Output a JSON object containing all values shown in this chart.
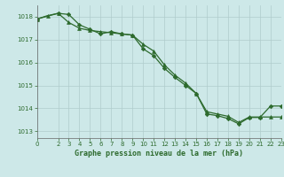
{
  "title": "Graphe pression niveau de la mer (hPa)",
  "background_color": "#cde8e8",
  "grid_color": "#b0cccc",
  "line_color": "#2d6a2d",
  "xlim": [
    0,
    23
  ],
  "ylim": [
    1012.7,
    1018.5
  ],
  "yticks": [
    1013,
    1014,
    1015,
    1016,
    1017,
    1018
  ],
  "xticks": [
    0,
    2,
    3,
    4,
    5,
    6,
    7,
    8,
    9,
    10,
    11,
    12,
    13,
    14,
    15,
    16,
    17,
    18,
    19,
    20,
    21,
    22,
    23
  ],
  "series1_x": [
    0,
    1,
    2,
    3,
    4,
    5,
    6,
    7,
    8,
    9,
    10,
    11,
    12,
    13,
    14,
    15,
    16,
    17,
    18,
    19,
    20,
    21,
    22,
    23
  ],
  "series1_y": [
    1017.9,
    1018.05,
    1018.15,
    1017.75,
    1017.5,
    1017.4,
    1017.35,
    1017.3,
    1017.25,
    1017.2,
    1016.8,
    1016.5,
    1015.9,
    1015.45,
    1015.1,
    1014.65,
    1013.85,
    1013.75,
    1013.65,
    1013.38,
    1013.62,
    1013.62,
    1013.62,
    1013.62
  ],
  "series2_x": [
    0,
    2,
    3,
    4,
    5,
    6,
    7,
    8,
    9,
    10,
    11,
    12,
    13,
    14,
    15,
    16,
    17,
    18,
    19,
    20,
    21,
    22,
    23
  ],
  "series2_y": [
    1017.9,
    1018.15,
    1018.1,
    1017.65,
    1017.45,
    1017.25,
    1017.35,
    1017.25,
    1017.2,
    1016.6,
    1016.3,
    1015.75,
    1015.35,
    1015.0,
    1014.65,
    1013.75,
    1013.68,
    1013.55,
    1013.32,
    1013.6,
    1013.6,
    1014.1,
    1014.1
  ]
}
